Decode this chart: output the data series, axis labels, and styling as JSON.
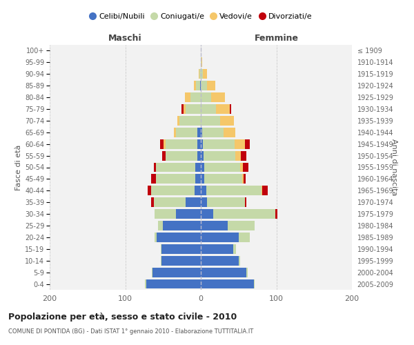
{
  "age_groups": [
    "100+",
    "95-99",
    "90-94",
    "85-89",
    "80-84",
    "75-79",
    "70-74",
    "65-69",
    "60-64",
    "55-59",
    "50-54",
    "45-49",
    "40-44",
    "35-39",
    "30-34",
    "25-29",
    "20-24",
    "15-19",
    "10-14",
    "5-9",
    "0-4"
  ],
  "birth_years": [
    "≤ 1909",
    "1910-1914",
    "1915-1919",
    "1920-1924",
    "1925-1929",
    "1930-1934",
    "1935-1939",
    "1940-1944",
    "1945-1949",
    "1950-1954",
    "1955-1959",
    "1960-1964",
    "1965-1969",
    "1970-1974",
    "1975-1979",
    "1980-1984",
    "1985-1989",
    "1990-1994",
    "1995-1999",
    "2000-2004",
    "2005-2009"
  ],
  "males_celibe": [
    0,
    0,
    0,
    1,
    0,
    0,
    0,
    5,
    5,
    5,
    7,
    7,
    8,
    20,
    33,
    50,
    58,
    52,
    52,
    64,
    72
  ],
  "males_coniugato": [
    0,
    0,
    2,
    5,
    14,
    20,
    28,
    28,
    42,
    42,
    52,
    52,
    58,
    42,
    28,
    7,
    3,
    1,
    1,
    1,
    2
  ],
  "males_vedovo": [
    0,
    0,
    1,
    3,
    7,
    3,
    3,
    3,
    2,
    0,
    0,
    0,
    0,
    0,
    0,
    0,
    0,
    0,
    0,
    0,
    0
  ],
  "males_divorziato": [
    0,
    0,
    0,
    0,
    0,
    3,
    0,
    0,
    5,
    4,
    3,
    7,
    4,
    4,
    0,
    0,
    0,
    0,
    0,
    0,
    0
  ],
  "females_nubile": [
    0,
    0,
    0,
    0,
    0,
    0,
    0,
    2,
    3,
    4,
    5,
    5,
    7,
    8,
    16,
    36,
    50,
    43,
    50,
    60,
    70
  ],
  "females_coniugata": [
    0,
    1,
    3,
    8,
    14,
    20,
    26,
    28,
    42,
    42,
    47,
    50,
    73,
    50,
    83,
    35,
    15,
    4,
    2,
    2,
    1
  ],
  "females_vedova": [
    0,
    1,
    5,
    11,
    18,
    18,
    18,
    16,
    13,
    7,
    4,
    2,
    1,
    0,
    0,
    0,
    0,
    0,
    0,
    0,
    0
  ],
  "females_divorziata": [
    0,
    0,
    0,
    0,
    0,
    2,
    0,
    0,
    7,
    7,
    7,
    2,
    8,
    2,
    2,
    0,
    0,
    0,
    0,
    0,
    0
  ],
  "color_celibe": "#4472C4",
  "color_coniugato": "#C5D9A8",
  "color_vedovo": "#F5C76A",
  "color_divorziato": "#C0000C",
  "bg_color": "#F2F2F2",
  "grid_color": "#CCCCCC",
  "title": "Popolazione per età, sesso e stato civile - 2010",
  "subtitle": "COMUNE DI PONTIDA (BG) - Dati ISTAT 1° gennaio 2010 - Elaborazione TUTTITALIA.IT",
  "label_maschi": "Maschi",
  "label_femmine": "Femmine",
  "ylabel_left": "Fasce di età",
  "ylabel_right": "Anni di nascita",
  "xlim": 200,
  "legend_labels": [
    "Celibi/Nubili",
    "Coniugati/e",
    "Vedovi/e",
    "Divorziati/e"
  ]
}
